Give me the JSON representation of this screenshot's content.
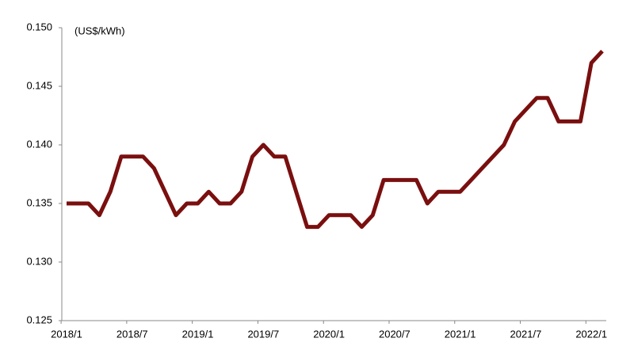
{
  "chart_data": {
    "type": "line",
    "y_label": "(US$/kWh)",
    "categories": [
      "2018/1",
      null,
      null,
      null,
      null,
      null,
      "2018/7",
      null,
      null,
      null,
      null,
      null,
      "2019/1",
      null,
      null,
      null,
      null,
      null,
      "2019/7",
      null,
      null,
      null,
      null,
      null,
      "2020/1",
      null,
      null,
      null,
      null,
      null,
      "2020/7",
      null,
      null,
      null,
      null,
      null,
      "2021/1",
      null,
      null,
      null,
      null,
      null,
      "2021/7",
      null,
      null,
      null,
      null,
      null,
      "2022/1",
      null
    ],
    "values": [
      0.135,
      0.135,
      0.135,
      0.134,
      0.136,
      0.139,
      0.139,
      0.139,
      0.138,
      0.136,
      0.134,
      0.135,
      0.135,
      0.136,
      0.135,
      0.135,
      0.136,
      0.139,
      0.14,
      0.139,
      0.139,
      0.136,
      0.133,
      0.133,
      0.134,
      0.134,
      0.134,
      0.133,
      0.134,
      0.137,
      0.137,
      0.137,
      0.137,
      0.135,
      0.136,
      0.136,
      0.136,
      0.137,
      0.138,
      0.139,
      0.14,
      0.142,
      0.143,
      0.144,
      0.144,
      0.142,
      0.142,
      0.142,
      0.147,
      0.148
    ],
    "color": "#7a0f0f",
    "ylim": [
      0.125,
      0.15
    ],
    "yticks": [
      {
        "value": 0.125,
        "label": "0.125"
      },
      {
        "value": 0.13,
        "label": "0.130"
      },
      {
        "value": 0.135,
        "label": "0.135"
      },
      {
        "value": 0.14,
        "label": "0.140"
      },
      {
        "value": 0.145,
        "label": "0.145"
      },
      {
        "value": 0.15,
        "label": "0.150"
      }
    ]
  }
}
